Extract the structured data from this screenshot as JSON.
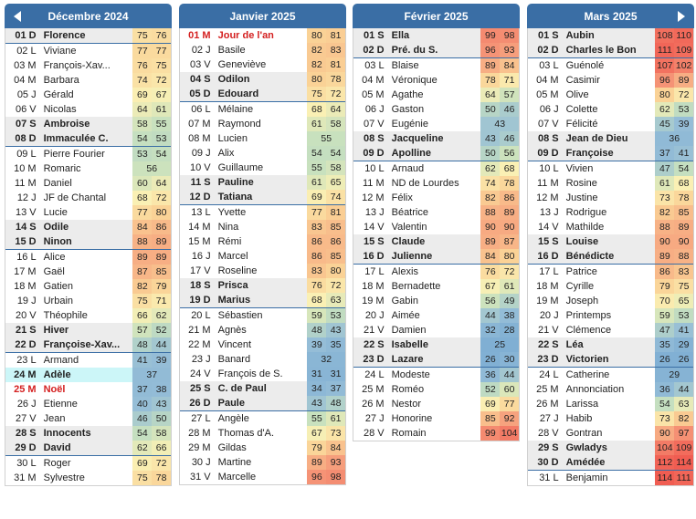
{
  "nav": {
    "prev": "previous-month",
    "next": "next-month"
  },
  "months": [
    {
      "title": "Décembre 2024",
      "rows": [
        [
          "01 D",
          "Florence",
          75,
          76,
          "w"
        ],
        [
          "02 L",
          "Viviane",
          77,
          77,
          ""
        ],
        [
          "03 M",
          "François-Xav...",
          76,
          75,
          ""
        ],
        [
          "04 M",
          "Barbara",
          74,
          72,
          ""
        ],
        [
          "05 J",
          "Gérald",
          69,
          67,
          ""
        ],
        [
          "06 V",
          "Nicolas",
          64,
          61,
          ""
        ],
        [
          "07 S",
          "Ambroise",
          58,
          55,
          "w"
        ],
        [
          "08 D",
          "Immaculée C.",
          54,
          53,
          "w"
        ],
        [
          "09 L",
          "Pierre Fourier",
          53,
          54,
          ""
        ],
        [
          "10 M",
          "Romaric",
          56,
          null,
          ""
        ],
        [
          "11 M",
          "Daniel",
          60,
          64,
          ""
        ],
        [
          "12 J",
          "JF de Chantal",
          68,
          72,
          ""
        ],
        [
          "13 V",
          "Lucie",
          77,
          80,
          ""
        ],
        [
          "14 S",
          "Odile",
          84,
          86,
          "w"
        ],
        [
          "15 D",
          "Ninon",
          88,
          89,
          "w"
        ],
        [
          "16 L",
          "Alice",
          89,
          89,
          ""
        ],
        [
          "17 M",
          "Gaël",
          87,
          85,
          ""
        ],
        [
          "18 M",
          "Gatien",
          82,
          79,
          ""
        ],
        [
          "19 J",
          "Urbain",
          75,
          71,
          ""
        ],
        [
          "20 V",
          "Théophile",
          66,
          62,
          ""
        ],
        [
          "21 S",
          "Hiver",
          57,
          52,
          "w"
        ],
        [
          "22 D",
          "Françoise-Xav...",
          48,
          44,
          "w"
        ],
        [
          "23 L",
          "Armand",
          41,
          39,
          ""
        ],
        [
          "24 M",
          "Adèle",
          37,
          null,
          "t"
        ],
        [
          "25 M",
          "Noël",
          37,
          38,
          "f"
        ],
        [
          "26 J",
          "Etienne",
          40,
          43,
          ""
        ],
        [
          "27 V",
          "Jean",
          46,
          50,
          ""
        ],
        [
          "28 S",
          "Innocents",
          54,
          58,
          "w"
        ],
        [
          "29 D",
          "David",
          62,
          66,
          "w"
        ],
        [
          "30 L",
          "Roger",
          69,
          72,
          ""
        ],
        [
          "31 M",
          "Sylvestre",
          75,
          78,
          ""
        ]
      ]
    },
    {
      "title": "Janvier 2025",
      "rows": [
        [
          "01 M",
          "Jour de l'an",
          80,
          81,
          "f"
        ],
        [
          "02 J",
          "Basile",
          82,
          83,
          ""
        ],
        [
          "03 V",
          "Geneviève",
          82,
          81,
          ""
        ],
        [
          "04 S",
          "Odilon",
          80,
          78,
          "w"
        ],
        [
          "05 D",
          "Edouard",
          75,
          72,
          "w"
        ],
        [
          "06 L",
          "Mélaine",
          68,
          64,
          ""
        ],
        [
          "07 M",
          "Raymond",
          61,
          58,
          ""
        ],
        [
          "08 M",
          "Lucien",
          55,
          null,
          ""
        ],
        [
          "09 J",
          "Alix",
          54,
          54,
          ""
        ],
        [
          "10 V",
          "Guillaume",
          55,
          58,
          ""
        ],
        [
          "11 S",
          "Pauline",
          61,
          65,
          "w"
        ],
        [
          "12 D",
          "Tatiana",
          69,
          74,
          "w"
        ],
        [
          "13 L",
          "Yvette",
          77,
          81,
          ""
        ],
        [
          "14 M",
          "Nina",
          83,
          85,
          ""
        ],
        [
          "15 M",
          "Rémi",
          86,
          86,
          ""
        ],
        [
          "16 J",
          "Marcel",
          86,
          85,
          ""
        ],
        [
          "17 V",
          "Roseline",
          83,
          80,
          ""
        ],
        [
          "18 S",
          "Prisca",
          76,
          72,
          "w"
        ],
        [
          "19 D",
          "Marius",
          68,
          63,
          "w"
        ],
        [
          "20 L",
          "Sébastien",
          59,
          53,
          ""
        ],
        [
          "21 M",
          "Agnès",
          48,
          43,
          ""
        ],
        [
          "22 M",
          "Vincent",
          39,
          35,
          ""
        ],
        [
          "23 J",
          "Banard",
          32,
          null,
          ""
        ],
        [
          "24 V",
          "François de S.",
          31,
          31,
          ""
        ],
        [
          "25 S",
          "C. de Paul",
          34,
          37,
          "w"
        ],
        [
          "26 D",
          "Paule",
          43,
          48,
          "w"
        ],
        [
          "27 L",
          "Angèle",
          55,
          61,
          ""
        ],
        [
          "28 M",
          "Thomas d'A.",
          67,
          73,
          ""
        ],
        [
          "29 M",
          "Gildas",
          79,
          84,
          ""
        ],
        [
          "30 J",
          "Martine",
          89,
          93,
          ""
        ],
        [
          "31 V",
          "Marcelle",
          96,
          98,
          ""
        ]
      ]
    },
    {
      "title": "Février 2025",
      "rows": [
        [
          "01 S",
          "Ella",
          99,
          98,
          "w"
        ],
        [
          "02 D",
          "Pré. du S.",
          96,
          93,
          "w"
        ],
        [
          "03 L",
          "Blaise",
          89,
          84,
          ""
        ],
        [
          "04 M",
          "Véronique",
          78,
          71,
          ""
        ],
        [
          "05 M",
          "Agathe",
          64,
          57,
          ""
        ],
        [
          "06 J",
          "Gaston",
          50,
          46,
          ""
        ],
        [
          "07 V",
          "Eugénie",
          43,
          null,
          ""
        ],
        [
          "08 S",
          "Jacqueline",
          43,
          46,
          "w"
        ],
        [
          "09 D",
          "Apolline",
          50,
          56,
          "w"
        ],
        [
          "10 L",
          "Arnaud",
          62,
          68,
          ""
        ],
        [
          "11 M",
          "ND de Lourdes",
          74,
          78,
          ""
        ],
        [
          "12 M",
          "Félix",
          82,
          86,
          ""
        ],
        [
          "13 J",
          "Béatrice",
          88,
          89,
          ""
        ],
        [
          "14 V",
          "Valentin",
          90,
          90,
          ""
        ],
        [
          "15 S",
          "Claude",
          89,
          87,
          "w"
        ],
        [
          "16 D",
          "Julienne",
          84,
          80,
          "w"
        ],
        [
          "17 L",
          "Alexis",
          76,
          72,
          ""
        ],
        [
          "18 M",
          "Bernadette",
          67,
          61,
          ""
        ],
        [
          "19 M",
          "Gabin",
          56,
          49,
          ""
        ],
        [
          "20 J",
          "Aimée",
          44,
          38,
          ""
        ],
        [
          "21 V",
          "Damien",
          32,
          28,
          ""
        ],
        [
          "22 S",
          "Isabelle",
          25,
          null,
          "w"
        ],
        [
          "23 D",
          "Lazare",
          26,
          30,
          "w"
        ],
        [
          "24 L",
          "Modeste",
          36,
          44,
          ""
        ],
        [
          "25 M",
          "Roméo",
          52,
          60,
          ""
        ],
        [
          "26 M",
          "Nestor",
          69,
          77,
          ""
        ],
        [
          "27 J",
          "Honorine",
          85,
          92,
          ""
        ],
        [
          "28 V",
          "Romain",
          99,
          104,
          ""
        ]
      ]
    },
    {
      "title": "Mars 2025",
      "rows": [
        [
          "01 S",
          "Aubin",
          108,
          110,
          "w"
        ],
        [
          "02 D",
          "Charles le Bon",
          111,
          109,
          "w"
        ],
        [
          "03 L",
          "Guénolé",
          107,
          102,
          ""
        ],
        [
          "04 M",
          "Casimir",
          96,
          89,
          ""
        ],
        [
          "05 M",
          "Olive",
          80,
          72,
          ""
        ],
        [
          "06 J",
          "Colette",
          62,
          53,
          ""
        ],
        [
          "07 V",
          "Félicité",
          45,
          39,
          ""
        ],
        [
          "08 S",
          "Jean de Dieu",
          36,
          null,
          "w"
        ],
        [
          "09 D",
          "Françoise",
          37,
          41,
          "w"
        ],
        [
          "10 L",
          "Vivien",
          47,
          54,
          ""
        ],
        [
          "11 M",
          "Rosine",
          61,
          68,
          ""
        ],
        [
          "12 M",
          "Justine",
          73,
          78,
          ""
        ],
        [
          "13 J",
          "Rodrigue",
          82,
          85,
          ""
        ],
        [
          "14 V",
          "Mathilde",
          88,
          89,
          ""
        ],
        [
          "15 S",
          "Louise",
          90,
          90,
          "w"
        ],
        [
          "16 D",
          "Bénédicte",
          89,
          88,
          "w"
        ],
        [
          "17 L",
          "Patrice",
          86,
          83,
          ""
        ],
        [
          "18 M",
          "Cyrille",
          79,
          75,
          ""
        ],
        [
          "19 M",
          "Joseph",
          70,
          65,
          ""
        ],
        [
          "20 J",
          "Printemps",
          59,
          53,
          ""
        ],
        [
          "21 V",
          "Clémence",
          47,
          41,
          ""
        ],
        [
          "22 S",
          "Léa",
          35,
          29,
          "w"
        ],
        [
          "23 D",
          "Victorien",
          26,
          26,
          "w"
        ],
        [
          "24 L",
          "Catherine",
          29,
          null,
          ""
        ],
        [
          "25 M",
          "Annonciation",
          36,
          44,
          ""
        ],
        [
          "26 M",
          "Larissa",
          54,
          63,
          ""
        ],
        [
          "27 J",
          "Habib",
          73,
          82,
          ""
        ],
        [
          "28 V",
          "Gontran",
          90,
          97,
          ""
        ],
        [
          "29 S",
          "Gwladys",
          104,
          109,
          "w"
        ],
        [
          "30 D",
          "Amédée",
          112,
          114,
          "w"
        ],
        [
          "31 L",
          "Benjamin",
          114,
          111,
          ""
        ]
      ]
    }
  ]
}
